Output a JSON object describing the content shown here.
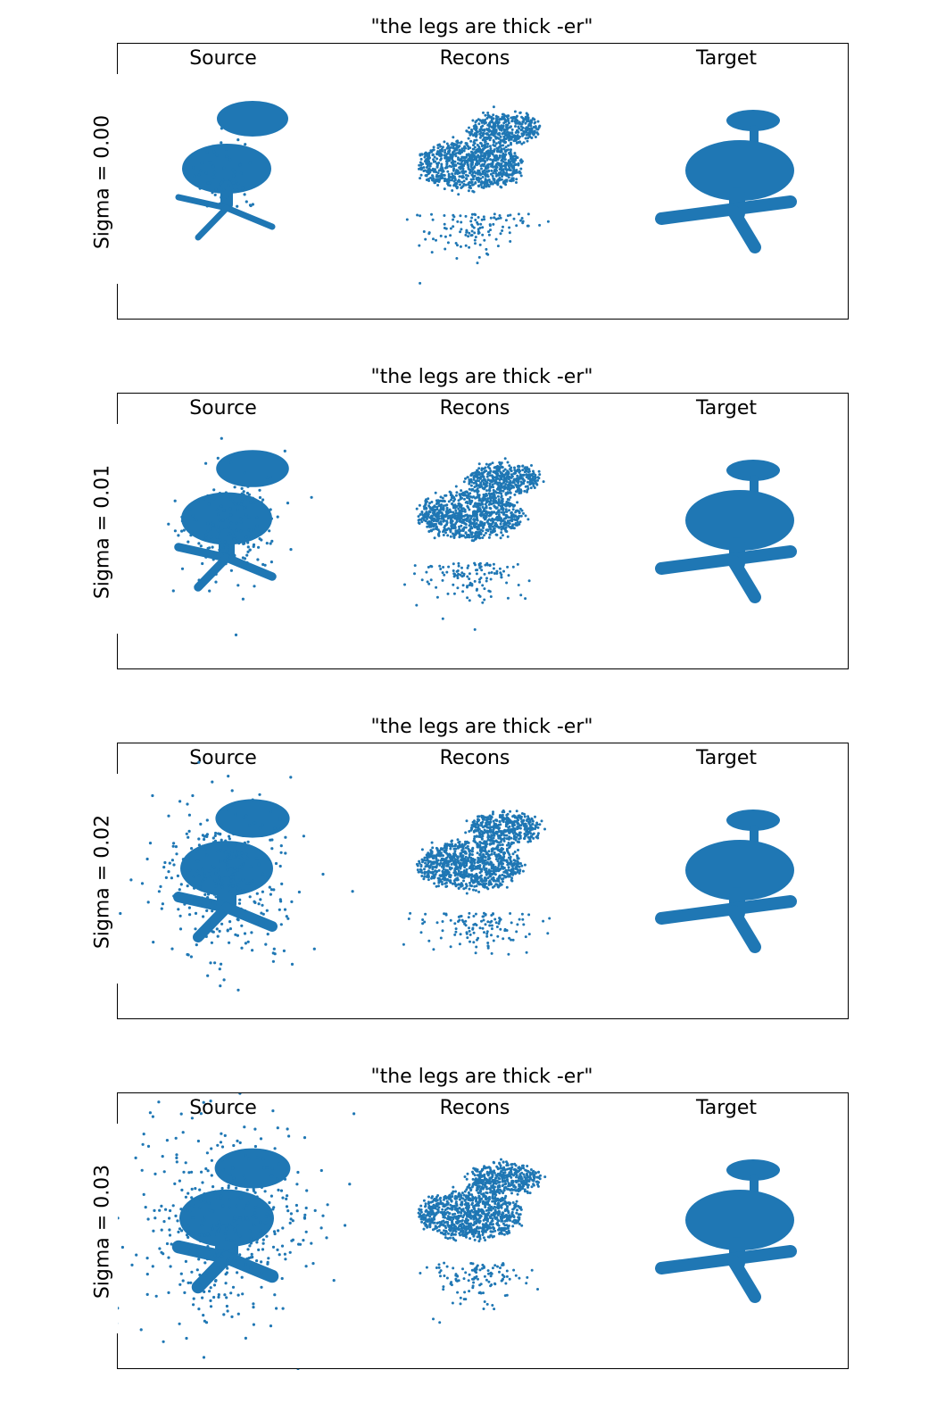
{
  "chart_data": [
    {
      "type": "scatter",
      "title": "\"the legs are thick -er\"",
      "ylabel": "Sigma = 0.00",
      "sigma": 0.0,
      "columns": [
        "Source",
        "Recons",
        "Target"
      ],
      "grid": false,
      "series_color": "#1f77b4"
    },
    {
      "type": "scatter",
      "title": "\"the legs are thick -er\"",
      "ylabel": "Sigma = 0.01",
      "sigma": 0.01,
      "columns": [
        "Source",
        "Recons",
        "Target"
      ],
      "grid": false,
      "series_color": "#1f77b4"
    },
    {
      "type": "scatter",
      "title": "\"the legs are thick -er\"",
      "ylabel": "Sigma = 0.02",
      "sigma": 0.02,
      "columns": [
        "Source",
        "Recons",
        "Target"
      ],
      "grid": false,
      "series_color": "#1f77b4"
    },
    {
      "type": "scatter",
      "title": "\"the legs are thick -er\"",
      "ylabel": "Sigma = 0.03",
      "sigma": 0.03,
      "columns": [
        "Source",
        "Recons",
        "Target"
      ],
      "grid": false,
      "series_color": "#1f77b4"
    }
  ]
}
